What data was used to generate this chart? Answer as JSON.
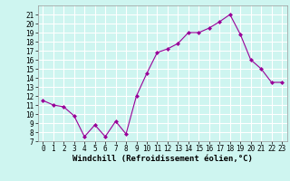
{
  "x": [
    0,
    1,
    2,
    3,
    4,
    5,
    6,
    7,
    8,
    9,
    10,
    11,
    12,
    13,
    14,
    15,
    16,
    17,
    18,
    19,
    20,
    21,
    22,
    23
  ],
  "y": [
    11.5,
    11.0,
    10.8,
    9.8,
    7.5,
    8.8,
    7.5,
    9.2,
    7.8,
    12.0,
    14.5,
    16.8,
    17.2,
    17.8,
    19.0,
    19.0,
    19.5,
    20.2,
    21.0,
    18.8,
    16.0,
    15.0,
    13.5,
    13.5
  ],
  "xlim": [
    -0.5,
    23.5
  ],
  "ylim": [
    7,
    22
  ],
  "yticks": [
    7,
    8,
    9,
    10,
    11,
    12,
    13,
    14,
    15,
    16,
    17,
    18,
    19,
    20,
    21
  ],
  "xticks": [
    0,
    1,
    2,
    3,
    4,
    5,
    6,
    7,
    8,
    9,
    10,
    11,
    12,
    13,
    14,
    15,
    16,
    17,
    18,
    19,
    20,
    21,
    22,
    23
  ],
  "xlabel": "Windchill (Refroidissement éolien,°C)",
  "line_color": "#990099",
  "marker": "D",
  "marker_size": 2,
  "bg_color": "#cef5f0",
  "grid_color": "#ffffff",
  "tick_label_fontsize": 5.5,
  "xlabel_fontsize": 6.5,
  "spine_color": "#999999"
}
